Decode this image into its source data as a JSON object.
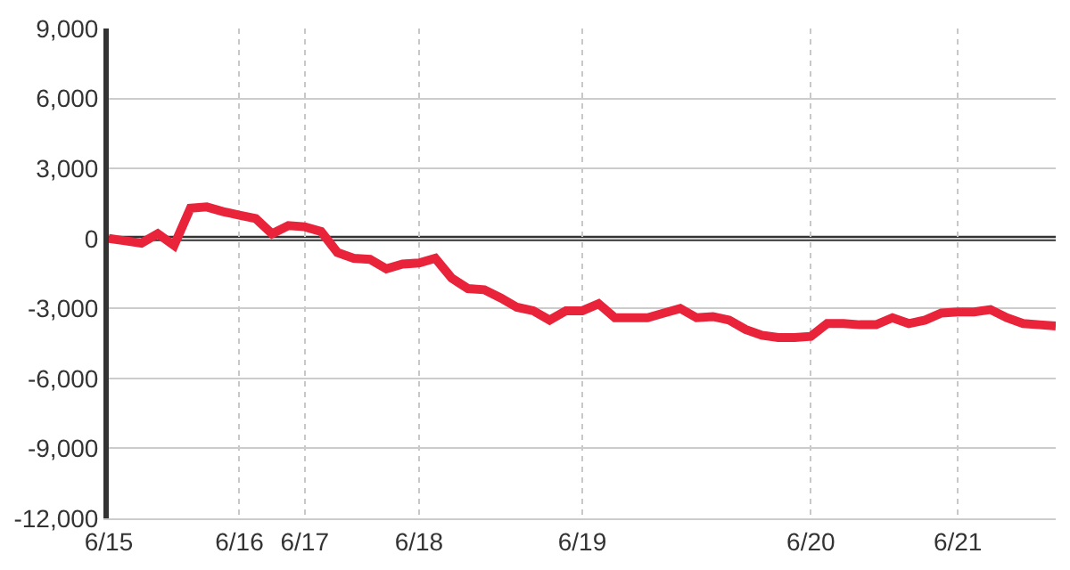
{
  "chart_data": {
    "type": "line",
    "categories": [
      "6/15",
      null,
      null,
      null,
      null,
      null,
      null,
      null,
      "6/16",
      null,
      null,
      null,
      "6/17",
      null,
      null,
      null,
      null,
      null,
      null,
      "6/18",
      null,
      null,
      null,
      null,
      null,
      null,
      null,
      null,
      null,
      "6/19",
      null,
      null,
      null,
      null,
      null,
      null,
      null,
      null,
      null,
      null,
      null,
      null,
      null,
      "6/20",
      null,
      null,
      null,
      null,
      null,
      null,
      null,
      null,
      "6/21",
      null,
      null,
      null,
      null,
      null,
      null
    ],
    "series": [
      {
        "color": "#e8233a",
        "values": [
          0,
          -100,
          -200,
          200,
          -300,
          1300,
          1350,
          1150,
          1000,
          850,
          200,
          550,
          500,
          300,
          -600,
          -850,
          -900,
          -1300,
          -1100,
          -1050,
          -850,
          -1700,
          -2150,
          -2200,
          -2550,
          -2950,
          -3100,
          -3500,
          -3100,
          -3100,
          -2800,
          -3400,
          -3400,
          -3400,
          -3200,
          -3000,
          -3400,
          -3350,
          -3500,
          -3900,
          -4150,
          -4250,
          -4250,
          -4200,
          -3650,
          -3650,
          -3700,
          -3700,
          -3400,
          -3650,
          -3500,
          -3200,
          -3150,
          -3150,
          -3050,
          -3400,
          -3650,
          -3700,
          -3750
        ]
      }
    ],
    "ylim": [
      -12000,
      9000
    ],
    "yticks": [
      {
        "value": -12000,
        "label": "-12,000"
      },
      {
        "value": -9000,
        "label": "-9,000"
      },
      {
        "value": -6000,
        "label": "-6,000"
      },
      {
        "value": -3000,
        "label": "-3,000"
      },
      0,
      {
        "value": 3000,
        "label": "3,000"
      },
      {
        "value": 6000,
        "label": "6,000"
      },
      {
        "value": 9000,
        "label": "9,000"
      }
    ],
    "ref_lines": [
      {
        "axis": "y",
        "value": 0,
        "color": "#333333"
      }
    ],
    "grid": true,
    "marker": "none",
    "line_style": "solid",
    "legend": false
  }
}
